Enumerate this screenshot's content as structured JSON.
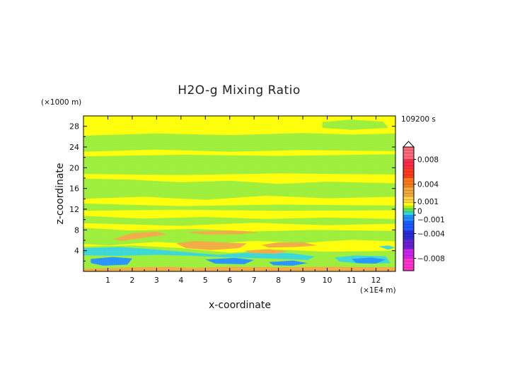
{
  "chart_data": {
    "type": "heatmap",
    "title": "H2O-g Mixing Ratio",
    "xlabel": "x-coordinate",
    "ylabel": "z-coordinate",
    "x_unit": "(×1E4 m)",
    "y_unit": "(×1000 m)",
    "time_label": "109200 s",
    "xlim": [
      0,
      12.8
    ],
    "ylim": [
      0,
      30
    ],
    "x_ticks": [
      1,
      2,
      3,
      4,
      5,
      6,
      7,
      8,
      9,
      10,
      11,
      12
    ],
    "y_ticks": [
      4,
      8,
      12,
      16,
      20,
      24,
      28
    ],
    "colorbar": {
      "range": [
        -0.01,
        0.01
      ],
      "tick_values": [
        0.008,
        0.004,
        0.001,
        0,
        -0.001,
        -0.004,
        -0.008
      ],
      "tick_labels": [
        "0.008",
        "0.004",
        "0.001",
        "0",
        "−0.001",
        "−0.004",
        "−0.008"
      ]
    },
    "colors": {
      "background_positive": "#ffff00",
      "near_zero_negative": "#99ee33",
      "positive_orange": "#f2a83c",
      "negative_cyan": "#33d6d6",
      "negative_blue": "#1e90ff",
      "strong_positive": "#ff3a3a",
      "strong_negative": "#ff00cc"
    },
    "regions": [
      {
        "sign": "negative",
        "level": -0.0005,
        "points": [
          [
            0,
            26.2
          ],
          [
            3,
            26.6
          ],
          [
            6,
            26.3
          ],
          [
            9,
            26.7
          ],
          [
            11,
            26.4
          ],
          [
            12.8,
            26.6
          ],
          [
            12.8,
            23.2
          ],
          [
            9,
            23.4
          ],
          [
            6,
            23.1
          ],
          [
            3,
            23.5
          ],
          [
            0,
            23.1
          ]
        ]
      },
      {
        "sign": "negative",
        "level": -0.0005,
        "points": [
          [
            9.8,
            28.8
          ],
          [
            11,
            29.3
          ],
          [
            12.3,
            28.9
          ],
          [
            12.5,
            27.7
          ],
          [
            11,
            27.3
          ],
          [
            9.8,
            27.7
          ]
        ]
      },
      {
        "sign": "negative",
        "level": -0.0005,
        "points": [
          [
            0,
            22.2
          ],
          [
            4,
            22.5
          ],
          [
            8,
            22.3
          ],
          [
            12.8,
            22.6
          ],
          [
            12.8,
            18.7
          ],
          [
            8,
            18.9
          ],
          [
            4,
            18.6
          ],
          [
            0,
            18.8
          ]
        ]
      },
      {
        "sign": "negative",
        "level": -0.0005,
        "points": [
          [
            0,
            17.9
          ],
          [
            2,
            17.7
          ],
          [
            4,
            17.2
          ],
          [
            6,
            17.5
          ],
          [
            8,
            16.9
          ],
          [
            10,
            17.3
          ],
          [
            12.8,
            17.0
          ],
          [
            12.8,
            14.4
          ],
          [
            10,
            14.1
          ],
          [
            7.5,
            14.6
          ],
          [
            5,
            13.8
          ],
          [
            2.5,
            14.4
          ],
          [
            0,
            14.0
          ]
        ]
      },
      {
        "sign": "negative",
        "level": -0.0005,
        "points": [
          [
            0,
            13.1
          ],
          [
            4,
            12.6
          ],
          [
            8,
            12.9
          ],
          [
            12.8,
            12.7
          ],
          [
            12.8,
            11.8
          ],
          [
            8,
            11.7
          ],
          [
            4,
            11.9
          ],
          [
            0,
            11.7
          ]
        ]
      },
      {
        "sign": "negative",
        "level": -0.0005,
        "points": [
          [
            0,
            10.7
          ],
          [
            2.5,
            10.2
          ],
          [
            5,
            10.5
          ],
          [
            7.5,
            10.1
          ],
          [
            10,
            10.4
          ],
          [
            12.8,
            10.1
          ],
          [
            12.8,
            9.2
          ],
          [
            10,
            8.9
          ],
          [
            7,
            9.4
          ],
          [
            4,
            8.8
          ],
          [
            0,
            9.3
          ]
        ]
      },
      {
        "sign": "negative",
        "level": -0.0005,
        "points": [
          [
            0,
            8.4
          ],
          [
            2,
            7.9
          ],
          [
            4.5,
            8.2
          ],
          [
            7,
            7.7
          ],
          [
            9.5,
            8.0
          ],
          [
            12.8,
            7.8
          ],
          [
            12.8,
            5.8
          ],
          [
            11,
            6.1
          ],
          [
            9,
            5.5
          ],
          [
            7,
            5.9
          ],
          [
            5,
            5.2
          ],
          [
            3,
            5.7
          ],
          [
            1,
            5.0
          ],
          [
            0,
            5.3
          ]
        ]
      },
      {
        "sign": "negative",
        "level": -0.0005,
        "points": [
          [
            0,
            4.8
          ],
          [
            2,
            5.0
          ],
          [
            4,
            4.5
          ],
          [
            6,
            3.6
          ],
          [
            8,
            4.2
          ],
          [
            10,
            3.8
          ],
          [
            12.8,
            4.0
          ],
          [
            12.8,
            0.3
          ],
          [
            0,
            0.3
          ]
        ]
      },
      {
        "sign": "negative",
        "level": -0.002,
        "points": [
          [
            0,
            4.5
          ],
          [
            1.5,
            4.7
          ],
          [
            2.8,
            4.3
          ],
          [
            4,
            3.8
          ],
          [
            5.5,
            3.2
          ],
          [
            7,
            3.7
          ],
          [
            8.5,
            3.5
          ],
          [
            9.5,
            2.9
          ],
          [
            9.2,
            2.2
          ],
          [
            7.5,
            2.5
          ],
          [
            6,
            2.7
          ],
          [
            4.5,
            3.0
          ],
          [
            3,
            3.2
          ],
          [
            1.5,
            3.0
          ],
          [
            0,
            3.1
          ]
        ]
      },
      {
        "sign": "negative",
        "level": -0.002,
        "points": [
          [
            10.3,
            2.7
          ],
          [
            11.2,
            3.1
          ],
          [
            12.4,
            2.9
          ],
          [
            12.6,
            1.6
          ],
          [
            11.4,
            1.5
          ],
          [
            10.5,
            1.9
          ]
        ]
      },
      {
        "sign": "negative",
        "level": -0.002,
        "points": [
          [
            12.1,
            4.8
          ],
          [
            12.5,
            5.0
          ],
          [
            12.8,
            4.6
          ],
          [
            12.5,
            4.2
          ]
        ]
      },
      {
        "sign": "negative",
        "level": -0.004,
        "points": [
          [
            0.3,
            2.4
          ],
          [
            1.2,
            2.8
          ],
          [
            2,
            2.5
          ],
          [
            1.8,
            1.3
          ],
          [
            0.8,
            1.1
          ],
          [
            0.3,
            1.6
          ]
        ]
      },
      {
        "sign": "negative",
        "level": -0.004,
        "points": [
          [
            5,
            2.3
          ],
          [
            6.2,
            2.6
          ],
          [
            7,
            2.2
          ],
          [
            6.6,
            1.4
          ],
          [
            5.4,
            1.5
          ]
        ]
      },
      {
        "sign": "negative",
        "level": -0.004,
        "points": [
          [
            7.6,
            1.8
          ],
          [
            8.6,
            2.1
          ],
          [
            9.2,
            1.6
          ],
          [
            8.6,
            1.1
          ],
          [
            7.8,
            1.2
          ]
        ]
      },
      {
        "sign": "negative",
        "level": -0.004,
        "points": [
          [
            11,
            2.4
          ],
          [
            11.8,
            2.7
          ],
          [
            12.4,
            2.3
          ],
          [
            12,
            1.5
          ],
          [
            11.2,
            1.6
          ]
        ]
      },
      {
        "sign": "positive",
        "level": 0.002,
        "points": [
          [
            1.2,
            6.2
          ],
          [
            2,
            7.4
          ],
          [
            3,
            7.7
          ],
          [
            3.4,
            7.1
          ],
          [
            2.5,
            6.5
          ],
          [
            1.6,
            5.9
          ]
        ]
      },
      {
        "sign": "positive",
        "level": 0.002,
        "points": [
          [
            4.2,
            7.6
          ],
          [
            6,
            7.9
          ],
          [
            7.2,
            7.6
          ],
          [
            6.4,
            7.2
          ],
          [
            5,
            7.1
          ]
        ]
      },
      {
        "sign": "positive",
        "level": 0.002,
        "points": [
          [
            3.8,
            5.4
          ],
          [
            4.6,
            5.9
          ],
          [
            5.6,
            5.6
          ],
          [
            6.7,
            5.4
          ],
          [
            6.4,
            4.5
          ],
          [
            5.2,
            4.1
          ],
          [
            4.2,
            4.5
          ]
        ]
      },
      {
        "sign": "positive",
        "level": 0.002,
        "points": [
          [
            7.3,
            5.1
          ],
          [
            8,
            5.6
          ],
          [
            9,
            5.6
          ],
          [
            9.6,
            5.0
          ],
          [
            8.7,
            4.7
          ],
          [
            7.6,
            4.6
          ]
        ]
      },
      {
        "sign": "positive",
        "level": 0.002,
        "points": [
          [
            6.6,
            4.0
          ],
          [
            7.6,
            4.3
          ],
          [
            8.4,
            3.9
          ],
          [
            7.9,
            3.4
          ],
          [
            6.9,
            3.5
          ]
        ]
      },
      {
        "sign": "positive",
        "level": 0.002,
        "points": [
          [
            2.2,
            0.8
          ],
          [
            3.5,
            0.9
          ],
          [
            4.5,
            0.7
          ],
          [
            6,
            0.9
          ],
          [
            8,
            0.8
          ],
          [
            10,
            0.9
          ],
          [
            12.8,
            0.8
          ],
          [
            12.8,
            0.0
          ],
          [
            0,
            0.0
          ],
          [
            0,
            0.5
          ]
        ]
      }
    ]
  }
}
